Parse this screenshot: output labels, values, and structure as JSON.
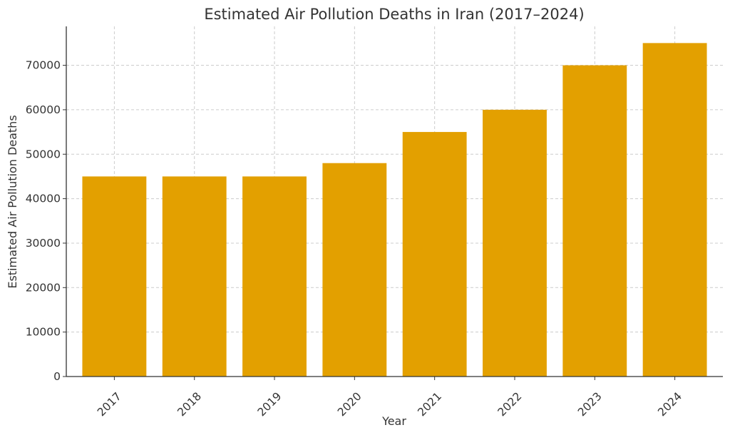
{
  "chart_data": {
    "type": "bar",
    "title": "Estimated Air Pollution Deaths in Iran (2017–2024)",
    "xlabel": "Year",
    "ylabel": "Estimated Air Pollution Deaths",
    "categories": [
      "2017",
      "2018",
      "2019",
      "2020",
      "2021",
      "2022",
      "2023",
      "2024"
    ],
    "values": [
      45000,
      45000,
      45000,
      48000,
      55000,
      60000,
      70000,
      75000
    ],
    "ylim": [
      0,
      78750
    ],
    "yticks": [
      0,
      10000,
      20000,
      30000,
      40000,
      50000,
      60000,
      70000
    ],
    "grid": true,
    "bar_color": "#e3a000",
    "legend": "none"
  }
}
